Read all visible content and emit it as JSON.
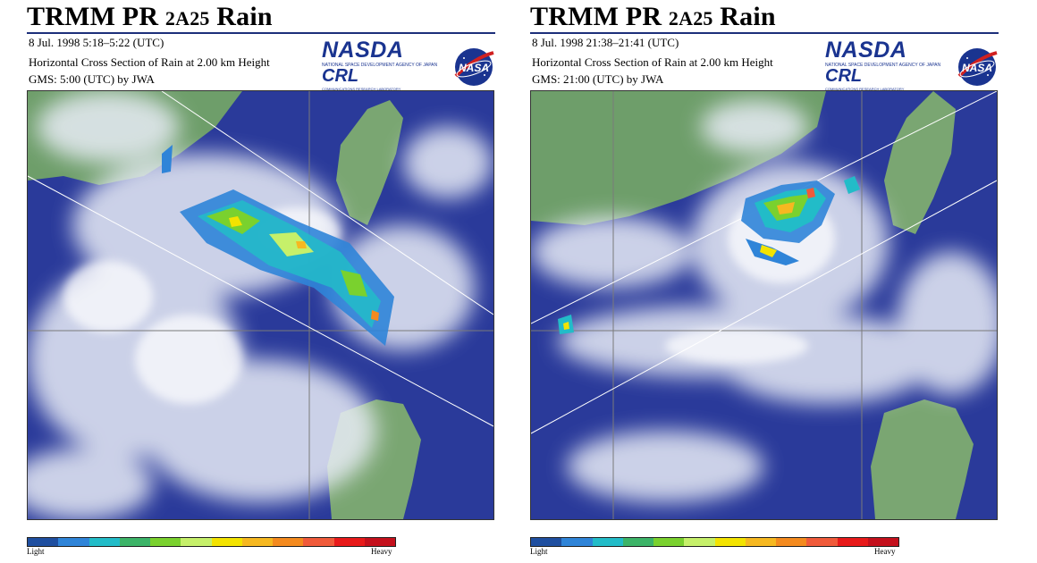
{
  "colors": {
    "title_rule": "#1c2f7a",
    "ocean": "#2a3a9a",
    "land": "#6e9e6a",
    "cloud": "#e8ecf6",
    "logo_blue": "#1a3490",
    "nasa_red": "#d02020"
  },
  "rain_scale": [
    "#1f4fa0",
    "#2f84d8",
    "#22bcc8",
    "#3cb468",
    "#7ad12e",
    "#c6f06a",
    "#f3e300",
    "#f6b820",
    "#f48a1e",
    "#f05a3a",
    "#e81a1a",
    "#c4101c"
  ],
  "logos": {
    "nasda_text": "NASDA",
    "nasda_sub": "NATIONAL SPACE DEVELOPMENT AGENCY OF JAPAN",
    "crl_text": "CRL",
    "crl_sub": "COMMUNICATIONS RESEARCH LABORATORY",
    "nasa_text": "NASA"
  },
  "scale_labels": {
    "light": "Light",
    "heavy": "Heavy"
  },
  "panels": [
    {
      "title_main": "TRMM PR ",
      "title_product": "2A25",
      "title_rain": " Rain",
      "date_time": "8 Jul. 1998  5:18–5:22 (UTC)",
      "description": "Horizontal Cross Section of Rain at 2.00 km Height",
      "gms_source": "GMS: 5:00 (UTC) by JWA"
    },
    {
      "title_main": "TRMM PR ",
      "title_product": "2A25",
      "title_rain": " Rain",
      "date_time": "8 Jul. 1998  21:38–21:41 (UTC)",
      "description": "Horizontal Cross Section of Rain at 2.00 km Height",
      "gms_source": "GMS: 21:00 (UTC) by JWA"
    }
  ]
}
